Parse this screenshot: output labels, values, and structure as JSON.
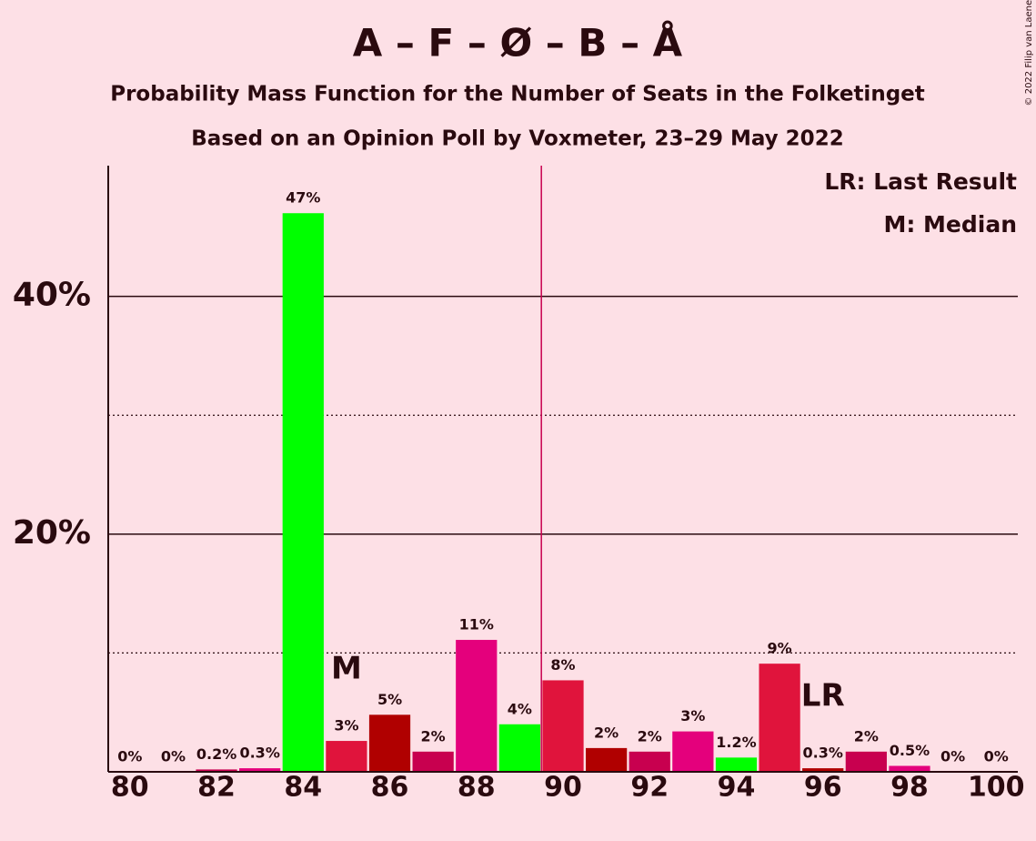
{
  "chart_data": {
    "type": "bar",
    "title": "A – F – Ø – B – Å",
    "subtitle": "Probability Mass Function for the Number of Seats in the Folketinget",
    "subtitle2": "Based on an Opinion Poll by Voxmeter, 23–29 May 2022",
    "copyright": "© 2022 Filip van Laenen",
    "legend": [
      "LR: Last Result",
      "M: Median"
    ],
    "x": [
      80,
      81,
      82,
      83,
      84,
      85,
      86,
      87,
      88,
      89,
      90,
      91,
      92,
      93,
      94,
      95,
      96,
      97,
      98,
      99,
      100
    ],
    "values": [
      0,
      0,
      0.2,
      0.3,
      47,
      2.6,
      4.8,
      1.7,
      11.1,
      4.0,
      7.7,
      2.0,
      1.7,
      3.4,
      1.2,
      9.1,
      0.3,
      1.7,
      0.5,
      0,
      0
    ],
    "value_labels": [
      "0%",
      "0%",
      "0.2%",
      "0.3%",
      "47%",
      "3%",
      "5%",
      "2%",
      "11%",
      "4%",
      "8%",
      "2%",
      "2%",
      "3%",
      "1.2%",
      "9%",
      "0.3%",
      "2%",
      "0.5%",
      "0%",
      "0%"
    ],
    "colors": [
      "#e0143c",
      "#b00000",
      "#c8004f",
      "#e4007c",
      "#00ff00",
      "#e0143c",
      "#b00000",
      "#c8004f",
      "#e4007c",
      "#00ff00",
      "#e0143c",
      "#b00000",
      "#c8004f",
      "#e4007c",
      "#00ff00",
      "#e0143c",
      "#b00000",
      "#c8004f",
      "#e4007c",
      "#00ff00",
      "#e0143c"
    ],
    "annotations": [
      {
        "text": "M",
        "x": 85
      },
      {
        "text": "LR",
        "x": 96
      }
    ],
    "majority_line": 89.5,
    "majority_color": "#c8004f",
    "xlim": [
      79.5,
      100.5
    ],
    "xticks": [
      80,
      82,
      84,
      86,
      88,
      90,
      92,
      94,
      96,
      98,
      100
    ],
    "ylim": [
      0,
      51
    ],
    "yticks": [
      {
        "value": 20,
        "label": "20%"
      },
      {
        "value": 40,
        "label": "40%"
      }
    ],
    "yminor": [
      10,
      30
    ],
    "grid": true
  }
}
